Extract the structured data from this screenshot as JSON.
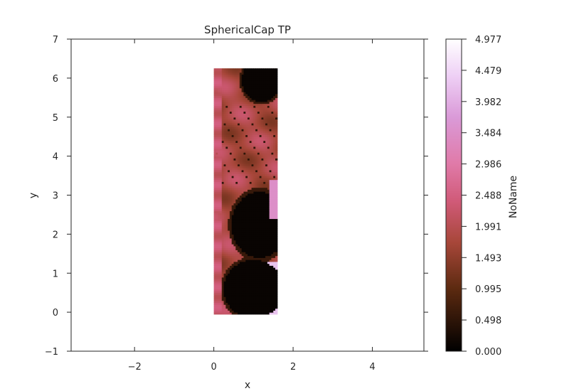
{
  "chart_data": {
    "type": "heatmap",
    "title": "SphericalCap TP",
    "xlabel": "x",
    "ylabel": "y",
    "xlim": [
      -3.6,
      5.3
    ],
    "ylim": [
      -1,
      7
    ],
    "xticks": [
      -2,
      0,
      2,
      4
    ],
    "yticks": [
      -1,
      0,
      1,
      2,
      3,
      4,
      5,
      6,
      7
    ],
    "xtick_labels": [
      "−2",
      "0",
      "2",
      "4"
    ],
    "ytick_labels": [
      "−1",
      "0",
      "1",
      "2",
      "3",
      "4",
      "5",
      "6",
      "7"
    ],
    "grid": false,
    "data_extent": {
      "x": [
        0,
        1.6
      ],
      "y": [
        -0.05,
        6.25
      ]
    },
    "data_description_note": "",
    "colorbar": {
      "label": "NoName",
      "min": 0.0,
      "max": 4.977,
      "ticks": [
        "4.977",
        "4.479",
        "3.982",
        "3.484",
        "2.986",
        "2.488",
        "1.991",
        "1.493",
        "0.995",
        "0.498",
        "0.000"
      ],
      "colormap": [
        {
          "v": 0.0,
          "c": "#000000"
        },
        {
          "v": 0.2,
          "c": "#5c2a10"
        },
        {
          "v": 0.35,
          "c": "#a8473a"
        },
        {
          "v": 0.48,
          "c": "#d05a78"
        },
        {
          "v": 0.6,
          "c": "#e07aa8"
        },
        {
          "v": 0.75,
          "c": "#da9ad8"
        },
        {
          "v": 0.88,
          "c": "#eecff5"
        },
        {
          "v": 1.0,
          "c": "#ffffff"
        }
      ]
    }
  }
}
